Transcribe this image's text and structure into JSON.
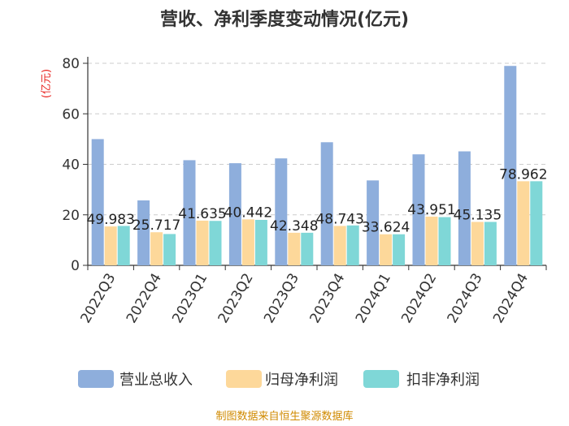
{
  "chart_data": {
    "type": "bar",
    "title": "营收、净利季度变动情况(亿元)",
    "ylabel": "(亿元)",
    "xlabel": "",
    "ylim": [
      0,
      80
    ],
    "yticks": [
      0,
      20,
      40,
      60,
      80
    ],
    "categories": [
      "2022Q3",
      "2022Q4",
      "2023Q1",
      "2023Q2",
      "2023Q3",
      "2023Q4",
      "2024Q1",
      "2024Q2",
      "2024Q3",
      "2024Q4"
    ],
    "series": [
      {
        "name": "营业总收入",
        "color": "#8eaedc",
        "values": [
          49.983,
          25.717,
          41.635,
          40.442,
          42.348,
          48.743,
          33.624,
          43.951,
          45.135,
          78.962
        ]
      },
      {
        "name": "归母净利润",
        "color": "#fdd89a",
        "values": [
          15.4,
          13.1,
          17.7,
          18.2,
          12.9,
          15.6,
          12.3,
          19.3,
          17.2,
          33.3
        ]
      },
      {
        "name": "扣非净利润",
        "color": "#7fd7d7",
        "values": [
          15.6,
          12.4,
          17.6,
          18.0,
          12.9,
          15.8,
          12.3,
          19.1,
          17.2,
          33.3
        ]
      }
    ],
    "data_labels": [
      "49.983",
      "25.717",
      "41.635",
      "40.442",
      "42.348",
      "48.743",
      "33.624",
      "43.951",
      "45.135",
      "78.962"
    ],
    "legend_position": "bottom",
    "grid": true
  },
  "footer": {
    "source": "制图数据来自恒生聚源数据库"
  }
}
